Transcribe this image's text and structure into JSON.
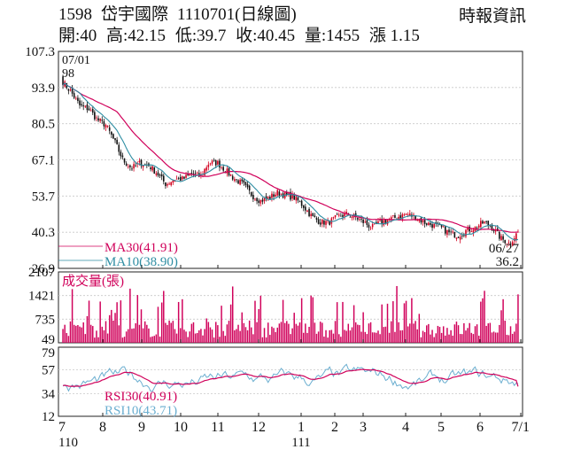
{
  "header": {
    "code": "1598",
    "name": "岱宇國際",
    "date_label": "1110701(日線圖)",
    "source": "時報資訊",
    "quote": {
      "open": "開:40",
      "high": "高:42.15",
      "low": "低:39.7",
      "close": "收:40.45",
      "volume": "量:1455",
      "change": "漲 1.15"
    }
  },
  "colors": {
    "up_candle": "#d2001f",
    "down_candle": "#111111",
    "ma30": "#d0005a",
    "ma10": "#2f8ea3",
    "volume": "#d0005a",
    "rsi30": "#d0005a",
    "rsi10": "#6aaed0"
  },
  "chart_data": [
    {
      "type": "candlestick",
      "panel": "price",
      "yticks": [
        107.3,
        93.9,
        80.5,
        67.1,
        53.7,
        40.3,
        26.9
      ],
      "ylim": [
        26.9,
        107.3
      ],
      "annotations": [
        {
          "text": "07/01",
          "x": "07/01"
        },
        {
          "text": "98",
          "x": "07/01",
          "value": 98
        },
        {
          "text": "06/27",
          "x": "06/27"
        },
        {
          "text": "36.2",
          "x": "06/27",
          "value": 36.2
        }
      ],
      "legend": [
        {
          "name": "MA30(41.91)",
          "color": "#d0005a"
        },
        {
          "name": "MA10(38.90)",
          "color": "#2f8ea3"
        }
      ],
      "series_shape": [
        [
          "07/01",
          96
        ],
        [
          "07/08",
          92
        ],
        [
          "07/15",
          87
        ],
        [
          "07/22",
          86
        ],
        [
          "07/29",
          82
        ],
        [
          "08/05",
          80
        ],
        [
          "08/12",
          74
        ],
        [
          "08/19",
          67
        ],
        [
          "08/26",
          64
        ],
        [
          "09/02",
          66
        ],
        [
          "09/09",
          65
        ],
        [
          "09/16",
          62
        ],
        [
          "09/23",
          58
        ],
        [
          "09/30",
          60
        ],
        [
          "10/07",
          60
        ],
        [
          "10/14",
          62
        ],
        [
          "10/21",
          61
        ],
        [
          "10/28",
          66
        ],
        [
          "11/04",
          66
        ],
        [
          "11/11",
          63
        ],
        [
          "11/18",
          60
        ],
        [
          "11/25",
          58
        ],
        [
          "12/02",
          54
        ],
        [
          "12/09",
          52
        ],
        [
          "12/16",
          53
        ],
        [
          "12/23",
          55
        ],
        [
          "12/30",
          54
        ],
        [
          "01/06",
          53
        ],
        [
          "01/13",
          50
        ],
        [
          "01/20",
          46
        ],
        [
          "01/27",
          44
        ],
        [
          "02/03",
          44
        ],
        [
          "02/10",
          46
        ],
        [
          "02/17",
          47
        ],
        [
          "02/24",
          46
        ],
        [
          "03/03",
          44
        ],
        [
          "03/10",
          42
        ],
        [
          "03/17",
          44
        ],
        [
          "03/24",
          45
        ],
        [
          "03/31",
          46
        ],
        [
          "04/07",
          47
        ],
        [
          "04/14",
          46
        ],
        [
          "04/21",
          44
        ],
        [
          "04/28",
          43
        ],
        [
          "05/05",
          42
        ],
        [
          "05/12",
          40
        ],
        [
          "05/19",
          39
        ],
        [
          "05/26",
          41
        ],
        [
          "06/02",
          42
        ],
        [
          "06/09",
          44
        ],
        [
          "06/16",
          42
        ],
        [
          "06/23",
          38
        ],
        [
          "06/27",
          36.2
        ],
        [
          "07/01",
          40.45
        ]
      ]
    },
    {
      "type": "bar",
      "panel": "volume",
      "title": "成交量(張)",
      "yticks": [
        2107,
        1421,
        735,
        49
      ],
      "ylim": [
        49,
        2107
      ]
    },
    {
      "type": "line",
      "panel": "rsi",
      "yticks": [
        79,
        57,
        34,
        12
      ],
      "ylim": [
        12,
        79
      ],
      "legend": [
        {
          "name": "RSI30(40.91)",
          "color": "#d0005a"
        },
        {
          "name": "RSI10(43.71)",
          "color": "#6aaed0"
        }
      ],
      "x_ticks": [
        {
          "label": "7",
          "year": "110"
        },
        {
          "label": "8"
        },
        {
          "label": "9"
        },
        {
          "label": "10"
        },
        {
          "label": "11"
        },
        {
          "label": "12"
        },
        {
          "label": "1",
          "year": "111"
        },
        {
          "label": "2"
        },
        {
          "label": "3"
        },
        {
          "label": "4"
        },
        {
          "label": "5"
        },
        {
          "label": "6"
        },
        {
          "label": "7/1"
        }
      ]
    }
  ]
}
